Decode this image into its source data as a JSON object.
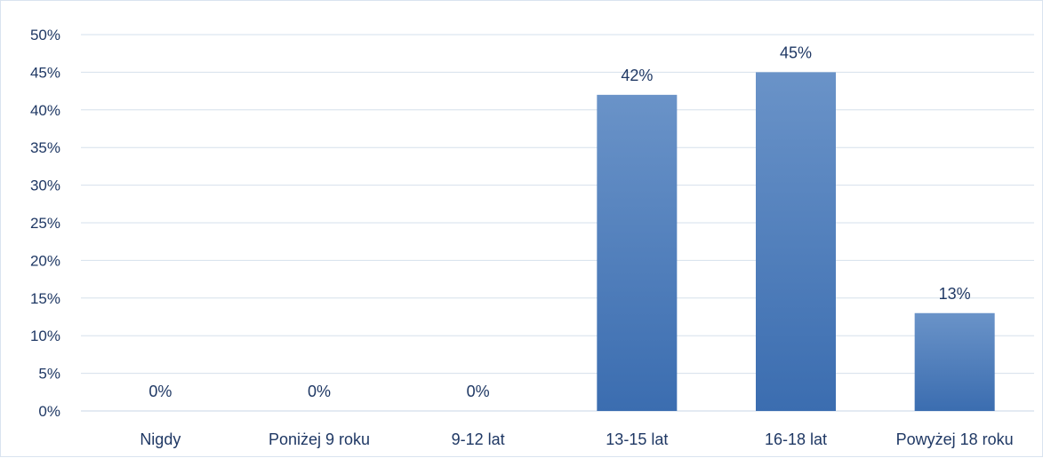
{
  "chart_data": {
    "type": "bar",
    "title": "",
    "xlabel": "",
    "ylabel": "",
    "categories": [
      "Nigdy",
      "Poniżej 9 roku",
      "9-12 lat",
      "13-15 lat",
      "16-18 lat",
      "Powyżej 18 roku"
    ],
    "values": [
      0,
      0,
      0,
      42,
      45,
      13
    ],
    "data_labels": [
      "0%",
      "0%",
      "0%",
      "42%",
      "45%",
      "13%"
    ],
    "y_ticks": [
      "0%",
      "5%",
      "10%",
      "15%",
      "20%",
      "25%",
      "30%",
      "35%",
      "40%",
      "45%",
      "50%"
    ],
    "ylim": [
      0,
      50
    ],
    "grid": true,
    "legend": "none",
    "colors": {
      "bar_top": "#6a93c8",
      "bar_bottom": "#3b6db0",
      "text": "#1f3864",
      "grid": "#d6e0ec"
    }
  }
}
